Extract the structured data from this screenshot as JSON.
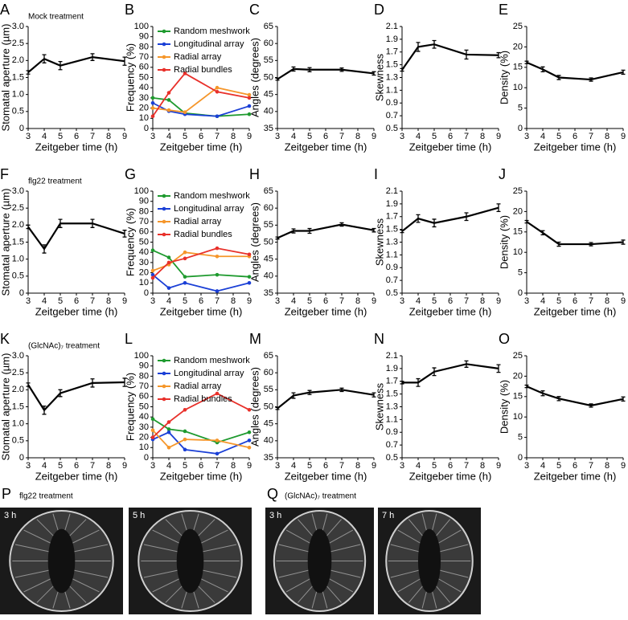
{
  "chart_data": [
    {
      "type": "line",
      "panel": "A",
      "annotation": "Mock treatment",
      "xlabel": "Zeitgeber time (h)",
      "ylabel": "Stomatal aperture (µm)",
      "x": [
        3,
        4,
        5,
        7,
        9
      ],
      "xlim": [
        3,
        9
      ],
      "xticks": [
        3,
        4,
        5,
        6,
        7,
        8,
        9
      ],
      "ylim": [
        0,
        3
      ],
      "yticks": [
        0,
        0.5,
        {
          "value": 1,
          "label": "1.0"
        },
        1.5,
        {
          "value": 2,
          "label": "2.0"
        },
        2.5,
        {
          "value": 3,
          "label": "3.0"
        }
      ],
      "series": [
        {
          "color": "#000000",
          "values": [
            1.65,
            2.05,
            1.85,
            2.1,
            1.98
          ],
          "errors": [
            0.05,
            0.12,
            0.12,
            0.1,
            0.12
          ]
        }
      ]
    },
    {
      "type": "line",
      "panel": "B",
      "xlabel": "Zeitgeber time (h)",
      "ylabel": "Frequency (%)",
      "x": [
        3,
        4,
        5,
        7,
        9
      ],
      "xlim": [
        3,
        9
      ],
      "xticks": [
        3,
        4,
        5,
        6,
        7,
        8,
        9
      ],
      "ylim": [
        0,
        100
      ],
      "yticks": [
        0,
        10,
        20,
        30,
        40,
        50,
        60,
        70,
        80,
        90,
        100
      ],
      "legend": "upper left",
      "series": [
        {
          "name": "Random meshwork",
          "color": "#1e9a2e",
          "values": [
            30,
            28,
            15,
            12,
            14
          ]
        },
        {
          "name": "Longitudinal array",
          "color": "#1a3fd6",
          "values": [
            25,
            17,
            14,
            12,
            22
          ]
        },
        {
          "name": "Radial array",
          "color": "#f5962a",
          "values": [
            20,
            18,
            16,
            40,
            33
          ]
        },
        {
          "name": "Radial bundles",
          "color": "#e8302a",
          "values": [
            12,
            35,
            54,
            36,
            30
          ]
        }
      ]
    },
    {
      "type": "line",
      "panel": "C",
      "xlabel": "Zeitgeber time (h)",
      "ylabel": "Angles (degrees)",
      "x": [
        3,
        4,
        5,
        7,
        9
      ],
      "xlim": [
        3,
        9
      ],
      "xticks": [
        3,
        4,
        5,
        6,
        7,
        8,
        9
      ],
      "ylim": [
        35,
        65
      ],
      "yticks": [
        35,
        40,
        45,
        50,
        55,
        60,
        65
      ],
      "series": [
        {
          "color": "#000000",
          "values": [
            49.5,
            52.5,
            52.3,
            52.3,
            51.2
          ],
          "errors": [
            0.3,
            0.6,
            0.6,
            0.5,
            0.5
          ]
        }
      ]
    },
    {
      "type": "line",
      "panel": "D",
      "xlabel": "Zeitgeber time (h)",
      "ylabel": "Skewness",
      "x": [
        3,
        4,
        5,
        7,
        9
      ],
      "xlim": [
        3,
        9
      ],
      "xticks": [
        3,
        4,
        5,
        6,
        7,
        8,
        9
      ],
      "ylim": [
        0.5,
        2.1
      ],
      "yticks": [
        0.5,
        0.7,
        0.9,
        1.1,
        1.3,
        1.5,
        1.7,
        1.9,
        2.1
      ],
      "series": [
        {
          "color": "#000000",
          "values": [
            1.42,
            1.78,
            1.82,
            1.66,
            1.65
          ],
          "errors": [
            0.02,
            0.07,
            0.06,
            0.07,
            0.04
          ]
        }
      ]
    },
    {
      "type": "line",
      "panel": "E",
      "xlabel": "Zeitgeber time (h)",
      "ylabel": "Density (%)",
      "x": [
        3,
        4,
        5,
        7,
        9
      ],
      "xlim": [
        3,
        9
      ],
      "xticks": [
        3,
        4,
        5,
        6,
        7,
        8,
        9
      ],
      "ylim": [
        0,
        25
      ],
      "yticks": [
        0,
        5,
        10,
        15,
        20,
        25
      ],
      "series": [
        {
          "color": "#000000",
          "values": [
            16.2,
            14.5,
            12.5,
            12,
            13.8
          ],
          "errors": [
            0.3,
            0.6,
            0.5,
            0.4,
            0.5
          ]
        }
      ]
    },
    {
      "type": "line",
      "panel": "F",
      "annotation": "flg22 treatment",
      "xlabel": "Zeitgeber time (h)",
      "ylabel": "Stomatal aperture (µm)",
      "x": [
        3,
        4,
        5,
        7,
        9
      ],
      "xlim": [
        3,
        9
      ],
      "xticks": [
        3,
        4,
        5,
        6,
        7,
        8,
        9
      ],
      "ylim": [
        0,
        3
      ],
      "yticks": [
        0,
        0.5,
        {
          "value": 1,
          "label": "1.0"
        },
        1.5,
        {
          "value": 2,
          "label": "2.0"
        },
        2.5,
        {
          "value": 3,
          "label": "3.0"
        }
      ],
      "series": [
        {
          "color": "#000000",
          "values": [
            1.95,
            1.3,
            2.05,
            2.05,
            1.75
          ],
          "errors": [
            0.05,
            0.12,
            0.12,
            0.12,
            0.1
          ]
        }
      ]
    },
    {
      "type": "line",
      "panel": "G",
      "xlabel": "Zeitgeber time (h)",
      "ylabel": "Frequency (%)",
      "x": [
        3,
        4,
        5,
        7,
        9
      ],
      "xlim": [
        3,
        9
      ],
      "xticks": [
        3,
        4,
        5,
        6,
        7,
        8,
        9
      ],
      "ylim": [
        0,
        100
      ],
      "yticks": [
        0,
        10,
        20,
        30,
        40,
        50,
        60,
        70,
        80,
        90,
        100
      ],
      "legend": "upper left",
      "series": [
        {
          "name": "Random meshwork",
          "color": "#1e9a2e",
          "values": [
            42,
            35,
            16,
            18,
            16
          ]
        },
        {
          "name": "Longitudinal array",
          "color": "#1a3fd6",
          "values": [
            18,
            5,
            10,
            2,
            10
          ]
        },
        {
          "name": "Radial array",
          "color": "#f5962a",
          "values": [
            22,
            28,
            40,
            36,
            36
          ]
        },
        {
          "name": "Radial bundles",
          "color": "#e8302a",
          "values": [
            15,
            30,
            34,
            44,
            38
          ]
        }
      ]
    },
    {
      "type": "line",
      "panel": "H",
      "xlabel": "Zeitgeber time (h)",
      "ylabel": "Angles (degrees)",
      "x": [
        3,
        4,
        5,
        7,
        9
      ],
      "xlim": [
        3,
        9
      ],
      "xticks": [
        3,
        4,
        5,
        6,
        7,
        8,
        9
      ],
      "ylim": [
        35,
        65
      ],
      "yticks": [
        35,
        40,
        45,
        50,
        55,
        60,
        65
      ],
      "series": [
        {
          "color": "#000000",
          "values": [
            51.2,
            53.3,
            53.3,
            55.2,
            53.5
          ],
          "errors": [
            0.3,
            0.6,
            0.7,
            0.5,
            0.5
          ]
        }
      ]
    },
    {
      "type": "line",
      "panel": "I",
      "xlabel": "Zeitgeber time (h)",
      "ylabel": "Skewness",
      "x": [
        3,
        4,
        5,
        7,
        9
      ],
      "xlim": [
        3,
        9
      ],
      "xticks": [
        3,
        4,
        5,
        6,
        7,
        8,
        9
      ],
      "ylim": [
        0.5,
        2.1
      ],
      "yticks": [
        0.5,
        0.7,
        0.9,
        1.1,
        1.3,
        1.5,
        1.7,
        1.9,
        2.1
      ],
      "series": [
        {
          "color": "#000000",
          "values": [
            1.47,
            1.67,
            1.6,
            1.7,
            1.84
          ],
          "errors": [
            0.02,
            0.06,
            0.06,
            0.06,
            0.06
          ]
        }
      ]
    },
    {
      "type": "line",
      "panel": "J",
      "xlabel": "Zeitgeber time (h)",
      "ylabel": "Density (%)",
      "x": [
        3,
        4,
        5,
        7,
        9
      ],
      "xlim": [
        3,
        9
      ],
      "xticks": [
        3,
        4,
        5,
        6,
        7,
        8,
        9
      ],
      "ylim": [
        0,
        25
      ],
      "yticks": [
        0,
        5,
        10,
        15,
        20,
        25
      ],
      "series": [
        {
          "color": "#000000",
          "values": [
            17.5,
            14.8,
            12,
            12,
            12.5
          ],
          "errors": [
            0.3,
            0.5,
            0.5,
            0.4,
            0.5
          ]
        }
      ]
    },
    {
      "type": "line",
      "panel": "K",
      "annotation": "(GlcNAc)₇ treatment",
      "xlabel": "Zeitgeber time (h)",
      "ylabel": "Stomatal aperture (µm)",
      "x": [
        3,
        4,
        5,
        7,
        9
      ],
      "xlim": [
        3,
        9
      ],
      "xticks": [
        3,
        4,
        5,
        6,
        7,
        8,
        9
      ],
      "ylim": [
        0,
        3
      ],
      "yticks": [
        0,
        0.5,
        {
          "value": 1,
          "label": "1.0"
        },
        1.5,
        {
          "value": 2,
          "label": "2.0"
        },
        2.5,
        {
          "value": 3,
          "label": "3.0"
        }
      ],
      "series": [
        {
          "color": "#000000",
          "values": [
            2.15,
            1.4,
            1.9,
            2.2,
            2.22
          ],
          "errors": [
            0.05,
            0.12,
            0.1,
            0.12,
            0.12
          ]
        }
      ]
    },
    {
      "type": "line",
      "panel": "L",
      "xlabel": "Zeitgeber time (h)",
      "ylabel": "Frequency (%)",
      "x": [
        3,
        4,
        5,
        7,
        9
      ],
      "xlim": [
        3,
        9
      ],
      "xticks": [
        3,
        4,
        5,
        6,
        7,
        8,
        9
      ],
      "ylim": [
        0,
        100
      ],
      "yticks": [
        0,
        10,
        20,
        30,
        40,
        50,
        60,
        70,
        80,
        90,
        100
      ],
      "legend": "upper left",
      "series": [
        {
          "name": "Random meshwork",
          "color": "#1e9a2e",
          "values": [
            38,
            28,
            26,
            15,
            25
          ]
        },
        {
          "name": "Longitudinal array",
          "color": "#1a3fd6",
          "values": [
            18,
            25,
            8,
            4,
            17
          ]
        },
        {
          "name": "Radial array",
          "color": "#f5962a",
          "values": [
            27,
            10,
            18,
            17,
            10
          ]
        },
        {
          "name": "Radial bundles",
          "color": "#e8302a",
          "values": [
            20,
            35,
            47,
            63,
            47
          ]
        }
      ]
    },
    {
      "type": "line",
      "panel": "M",
      "xlabel": "Zeitgeber time (h)",
      "ylabel": "Angles (degrees)",
      "x": [
        3,
        4,
        5,
        7,
        9
      ],
      "xlim": [
        3,
        9
      ],
      "xticks": [
        3,
        4,
        5,
        6,
        7,
        8,
        9
      ],
      "ylim": [
        35,
        65
      ],
      "yticks": [
        35,
        40,
        45,
        50,
        55,
        60,
        65
      ],
      "series": [
        {
          "color": "#000000",
          "values": [
            49.5,
            53.3,
            54.2,
            55,
            53.5
          ],
          "errors": [
            0.3,
            0.8,
            0.6,
            0.5,
            0.6
          ]
        }
      ]
    },
    {
      "type": "line",
      "panel": "N",
      "xlabel": "Zeitgeber time (h)",
      "ylabel": "Skewness",
      "x": [
        3,
        4,
        5,
        7,
        9
      ],
      "xlim": [
        3,
        9
      ],
      "xticks": [
        3,
        4,
        5,
        6,
        7,
        8,
        9
      ],
      "ylim": [
        0.5,
        2.1
      ],
      "yticks": [
        0.5,
        0.7,
        0.9,
        1.1,
        1.3,
        1.5,
        1.7,
        1.9,
        2.1
      ],
      "series": [
        {
          "color": "#000000",
          "values": [
            1.68,
            1.68,
            1.85,
            1.97,
            1.9
          ],
          "errors": [
            0.02,
            0.06,
            0.06,
            0.05,
            0.06
          ]
        }
      ]
    },
    {
      "type": "line",
      "panel": "O",
      "xlabel": "Zeitgeber time (h)",
      "ylabel": "Density (%)",
      "x": [
        3,
        4,
        5,
        7,
        9
      ],
      "xlim": [
        3,
        9
      ],
      "xticks": [
        3,
        4,
        5,
        6,
        7,
        8,
        9
      ],
      "ylim": [
        0,
        25
      ],
      "yticks": [
        0,
        5,
        10,
        15,
        20,
        25
      ],
      "series": [
        {
          "color": "#000000",
          "values": [
            17.5,
            15.8,
            14.5,
            12.8,
            14.4
          ],
          "errors": [
            0.3,
            0.6,
            0.5,
            0.4,
            0.5
          ]
        }
      ]
    }
  ],
  "image_panels": [
    {
      "panel": "P",
      "title": "flg22 treatment",
      "images": [
        "3 h",
        "5 h"
      ]
    },
    {
      "panel": "Q",
      "title": "(GlcNAc)₇ treatment",
      "images": [
        "3 h",
        "7 h"
      ]
    }
  ]
}
